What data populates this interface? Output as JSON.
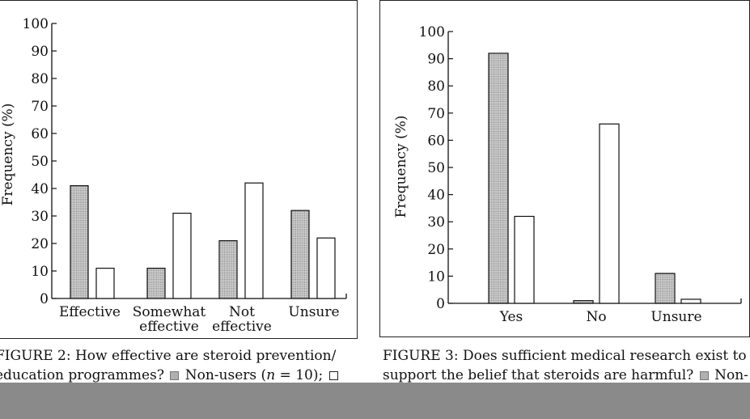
{
  "chart_data": [
    {
      "type": "bar",
      "ylabel": "Frequency (%)",
      "ylim": [
        0,
        100
      ],
      "yticks": [
        "0",
        "10",
        "20",
        "30",
        "40",
        "50",
        "60",
        "70",
        "80",
        "90",
        "100"
      ],
      "categories": [
        {
          "line1": "Effective",
          "line2": ""
        },
        {
          "line1": "Somewhat",
          "line2": "effective"
        },
        {
          "line1": "Not",
          "line2": "effective"
        },
        {
          "line1": "Unsure",
          "line2": ""
        }
      ],
      "series": [
        {
          "name": "Non-users",
          "pattern": "dotted",
          "values": [
            41,
            11,
            21,
            32
          ]
        },
        {
          "pattern": "white",
          "values": [
            11,
            31,
            42,
            22
          ]
        }
      ]
    },
    {
      "type": "bar",
      "ylabel": "Frequency (%)",
      "ylim": [
        0,
        100
      ],
      "yticks": [
        "0",
        "10",
        "20",
        "30",
        "40",
        "50",
        "60",
        "70",
        "80",
        "90",
        "100"
      ],
      "categories": [
        {
          "line1": "Yes",
          "line2": ""
        },
        {
          "line1": "No",
          "line2": ""
        },
        {
          "line1": "Unsure",
          "line2": ""
        }
      ],
      "series": [
        {
          "pattern": "dotted",
          "values": [
            92,
            1,
            11
          ]
        },
        {
          "pattern": "white",
          "values": [
            32,
            66,
            1.5
          ]
        }
      ]
    }
  ],
  "captions": {
    "left": {
      "line1": "FIGURE 2: How effective are steroid prevention/",
      "line2a": "education programmes?",
      "line2b": "Non-users (",
      "line2n": "n",
      "line2c": " = 10);"
    },
    "right": {
      "line1": "FIGURE 3: Does sufficient medical research exist to",
      "line2a": "support the belief that steroids are harmful?",
      "line2b": "Non-"
    }
  },
  "colors": {
    "dotted_fill": "#cfcfcf",
    "dot": "#555555",
    "axis": "#111111"
  }
}
